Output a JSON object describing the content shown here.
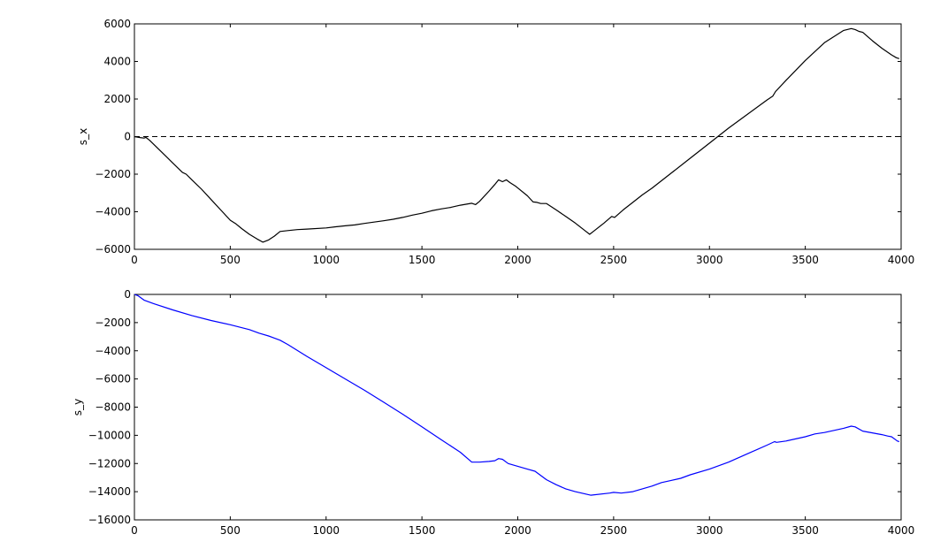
{
  "chart_data": [
    {
      "type": "line",
      "ylabel": "s_x",
      "xlabel": "",
      "xlim": [
        0,
        4000
      ],
      "ylim": [
        -6000,
        6000
      ],
      "xticks": [
        0,
        500,
        1000,
        1500,
        2000,
        2500,
        3000,
        3500,
        4000
      ],
      "yticks": [
        -6000,
        -4000,
        -2000,
        0,
        2000,
        4000,
        6000
      ],
      "grid": false,
      "reference_line": {
        "y": 0,
        "style": "dashed",
        "color": "#000000"
      },
      "series": [
        {
          "color": "#000000",
          "x": [
            0,
            30,
            50,
            60,
            80,
            120,
            160,
            200,
            250,
            270,
            300,
            350,
            400,
            450,
            500,
            530,
            560,
            600,
            640,
            670,
            700,
            730,
            760,
            800,
            850,
            900,
            1000,
            1050,
            1100,
            1150,
            1200,
            1250,
            1300,
            1350,
            1400,
            1450,
            1500,
            1550,
            1600,
            1650,
            1700,
            1760,
            1780,
            1800,
            1850,
            1880,
            1900,
            1920,
            1940,
            1960,
            1990,
            2050,
            2080,
            2100,
            2120,
            2150,
            2200,
            2250,
            2300,
            2350,
            2375,
            2400,
            2450,
            2490,
            2505,
            2550,
            2600,
            2650,
            2700,
            2800,
            2900,
            3000,
            3100,
            3200,
            3300,
            3330,
            3345,
            3400,
            3500,
            3600,
            3700,
            3740,
            3760,
            3780,
            3800,
            3850,
            3900,
            3950,
            3975,
            3990
          ],
          "values": [
            0,
            -50,
            -80,
            -40,
            -200,
            -600,
            -1000,
            -1400,
            -1900,
            -2000,
            -2300,
            -2800,
            -3350,
            -3900,
            -4450,
            -4650,
            -4900,
            -5200,
            -5450,
            -5620,
            -5500,
            -5300,
            -5050,
            -5000,
            -4950,
            -4920,
            -4860,
            -4800,
            -4750,
            -4700,
            -4620,
            -4550,
            -4480,
            -4400,
            -4300,
            -4180,
            -4080,
            -3950,
            -3850,
            -3770,
            -3650,
            -3550,
            -3620,
            -3450,
            -2900,
            -2550,
            -2300,
            -2400,
            -2300,
            -2450,
            -2650,
            -3150,
            -3480,
            -3500,
            -3560,
            -3560,
            -3900,
            -4250,
            -4600,
            -5000,
            -5200,
            -5000,
            -4600,
            -4250,
            -4300,
            -3900,
            -3500,
            -3100,
            -2750,
            -1950,
            -1150,
            -350,
            450,
            1200,
            1950,
            2150,
            2400,
            3000,
            4050,
            5000,
            5650,
            5750,
            5700,
            5600,
            5550,
            5100,
            4700,
            4350,
            4200,
            4150
          ]
        }
      ]
    },
    {
      "type": "line",
      "ylabel": "s_y",
      "xlabel": "",
      "xlim": [
        0,
        4000
      ],
      "ylim": [
        -16000,
        0
      ],
      "xticks": [
        0,
        500,
        1000,
        1500,
        2000,
        2500,
        3000,
        3500,
        4000
      ],
      "yticks": [
        -16000,
        -14000,
        -12000,
        -10000,
        -8000,
        -6000,
        -4000,
        -2000,
        0
      ],
      "grid": false,
      "series": [
        {
          "color": "#0000ff",
          "x": [
            0,
            20,
            50,
            100,
            200,
            300,
            400,
            500,
            600,
            650,
            700,
            760,
            800,
            900,
            1000,
            1100,
            1200,
            1300,
            1400,
            1500,
            1600,
            1700,
            1760,
            1800,
            1850,
            1880,
            1900,
            1920,
            1950,
            2000,
            2050,
            2090,
            2150,
            2200,
            2250,
            2300,
            2380,
            2480,
            2500,
            2540,
            2600,
            2650,
            2700,
            2750,
            2800,
            2850,
            2900,
            3000,
            3100,
            3200,
            3300,
            3340,
            3350,
            3400,
            3500,
            3550,
            3600,
            3700,
            3740,
            3760,
            3800,
            3900,
            3930,
            3950,
            3980,
            3990
          ],
          "values": [
            0,
            -100,
            -400,
            -650,
            -1100,
            -1500,
            -1850,
            -2150,
            -2500,
            -2750,
            -2950,
            -3250,
            -3550,
            -4400,
            -5200,
            -6000,
            -6800,
            -7650,
            -8500,
            -9400,
            -10300,
            -11200,
            -11900,
            -11900,
            -11850,
            -11800,
            -11650,
            -11700,
            -12000,
            -12200,
            -12400,
            -12550,
            -13150,
            -13500,
            -13800,
            -14000,
            -14250,
            -14100,
            -14050,
            -14100,
            -14000,
            -13800,
            -13600,
            -13350,
            -13200,
            -13050,
            -12800,
            -12400,
            -11900,
            -11300,
            -10700,
            -10450,
            -10500,
            -10400,
            -10100,
            -9900,
            -9800,
            -9500,
            -9350,
            -9400,
            -9700,
            -9950,
            -10050,
            -10100,
            -10400,
            -10450
          ]
        }
      ]
    }
  ]
}
